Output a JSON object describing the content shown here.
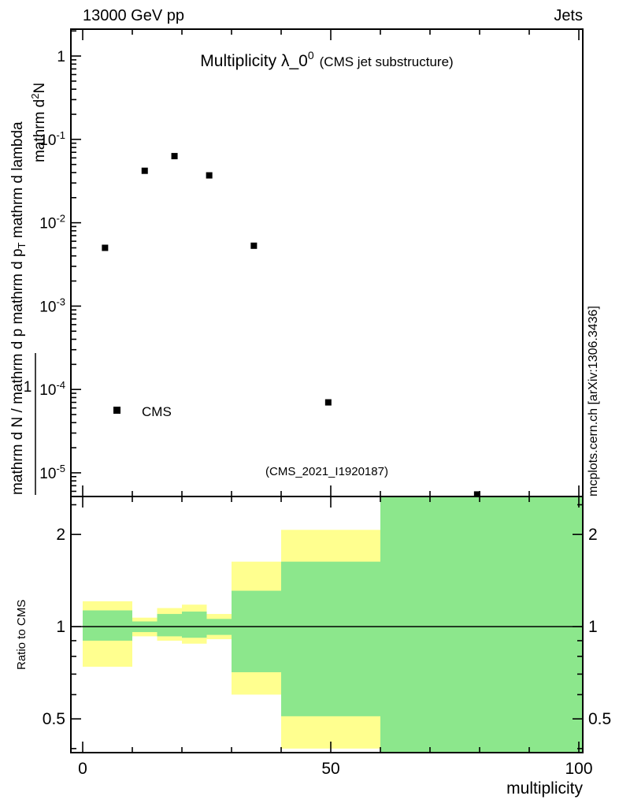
{
  "header": {
    "left": "13000 GeV pp",
    "right": "Jets"
  },
  "title": {
    "main": "Multiplicity λ_0",
    "sup": "0",
    "note": "(CMS jet substructure)"
  },
  "legend": {
    "label": "CMS"
  },
  "watermark": "(CMS_2021_I1920187)",
  "right_label": "mcplots.cern.ch [arXiv:1306.3436]",
  "xlabel": "multiplicity",
  "ratio_ylabel": "Ratio to CMS",
  "ylabel": {
    "prefix": "1",
    "num_a": "mathrm d",
    "num_sup": "2",
    "num_b": "N",
    "den_a": "mathrm d N / mathrm d p mathrm d p",
    "den_sub": "T",
    "den_b": " mathrm d lambda"
  },
  "colors": {
    "band_outer": "#ffff8f",
    "band_inner": "#8ce78c",
    "marker": "#000000",
    "watermark": "#b9b9b9",
    "right_label": "#8f8f8f"
  },
  "chart_data": {
    "type": "scatter",
    "title": "Multiplicity λ_0^0 (CMS jet substructure)",
    "xlabel": "multiplicity",
    "xlim": [
      -2.4,
      100.8
    ],
    "x_ticks": [
      {
        "v": 0,
        "label": "0"
      },
      {
        "v": 50,
        "label": "50"
      },
      {
        "v": 100,
        "label": "100"
      }
    ],
    "x_minor": [
      10,
      20,
      30,
      40,
      60,
      70,
      80,
      90
    ],
    "main_panel": {
      "yscale": "log",
      "ylim": [
        5.2e-06,
        2.1
      ],
      "series_name": "CMS",
      "points": [
        [
          4.5,
          0.005
        ],
        [
          12.5,
          0.042
        ],
        [
          18.5,
          0.063
        ],
        [
          25.5,
          0.037
        ],
        [
          34.5,
          0.0053
        ],
        [
          49.5,
          7e-05
        ],
        [
          79.5,
          5.5e-06
        ]
      ],
      "y_ticks": [
        {
          "v": 1,
          "base": "1",
          "exp": ""
        },
        {
          "v": 0.1,
          "base": "10",
          "exp": "-1"
        },
        {
          "v": 0.01,
          "base": "10",
          "exp": "-2"
        },
        {
          "v": 0.001,
          "base": "10",
          "exp": "-3"
        },
        {
          "v": 0.0001,
          "base": "10",
          "exp": "-4"
        },
        {
          "v": 1e-05,
          "base": "10",
          "exp": "-5"
        }
      ]
    },
    "ratio_panel": {
      "yscale": "log",
      "ylim": [
        0.388,
        2.66
      ],
      "reference_line": 1,
      "y_ticks": [
        {
          "v": 2,
          "label": "2"
        },
        {
          "v": 1,
          "label": "1"
        },
        {
          "v": 0.5,
          "label": "0.5"
        }
      ],
      "y_minor": [
        0.4,
        0.6,
        0.7,
        0.8,
        0.9,
        2.5
      ],
      "bands": [
        {
          "x": [
            0,
            10
          ],
          "outer": [
            0.74,
            1.21
          ],
          "inner": [
            0.9,
            1.13
          ]
        },
        {
          "x": [
            10,
            15
          ],
          "outer": [
            0.93,
            1.07
          ],
          "inner": [
            0.96,
            1.04
          ]
        },
        {
          "x": [
            15,
            20
          ],
          "outer": [
            0.9,
            1.15
          ],
          "inner": [
            0.93,
            1.1
          ]
        },
        {
          "x": [
            20,
            25
          ],
          "outer": [
            0.88,
            1.18
          ],
          "inner": [
            0.92,
            1.12
          ]
        },
        {
          "x": [
            25,
            30
          ],
          "outer": [
            0.91,
            1.1
          ],
          "inner": [
            0.94,
            1.06
          ]
        },
        {
          "x": [
            30,
            40
          ],
          "outer": [
            0.6,
            1.63
          ],
          "inner": [
            0.71,
            1.31
          ]
        },
        {
          "x": [
            40,
            60
          ],
          "outer": [
            0.4,
            2.07
          ],
          "inner": [
            0.51,
            1.63
          ]
        },
        {
          "x": [
            60,
            100.8
          ],
          "outer": [
            0.36,
            2.8
          ],
          "inner": [
            0.36,
            2.8
          ]
        }
      ]
    }
  }
}
